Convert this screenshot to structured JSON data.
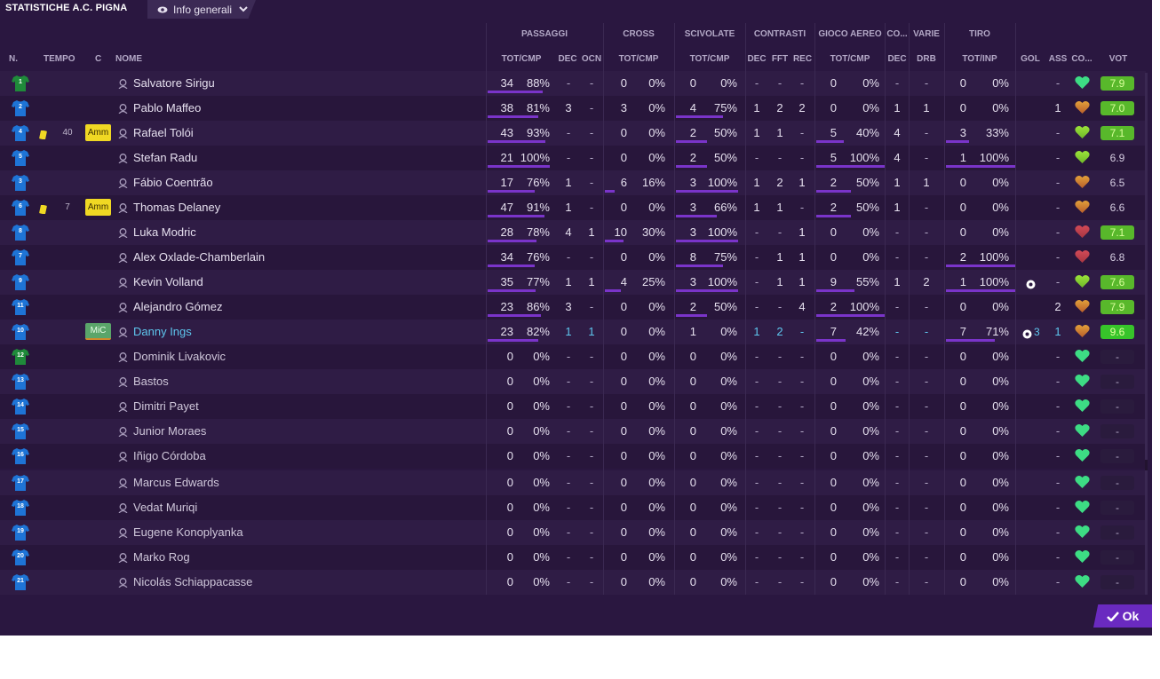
{
  "title": "STATISTICHE A.C. PIGNA",
  "view_select": {
    "label": "Info generali",
    "icon": "eye-icon"
  },
  "groups": {
    "passaggi": "PASSAGGI",
    "cross": "CROSS",
    "scivolate": "SCIVOLATE",
    "contrasti": "CONTRASTI",
    "aereo": "GIOCO AEREO",
    "co": "CO...",
    "varie": "VARIE",
    "tiro": "TIRO"
  },
  "columns": {
    "n": "N.",
    "tempo": "TEMPO",
    "c": "C",
    "nome": "NOME",
    "pass_tc": "TOT/CMP",
    "pass_dec": "DEC",
    "pass_ocn": "OCN",
    "cross_tc": "TOT/CMP",
    "sciv_tc": "TOT/CMP",
    "con_dec": "DEC",
    "con_fft": "FFT",
    "con_rec": "REC",
    "aer_tc": "TOT/CMP",
    "co_dec": "DEC",
    "var_drb": "DRB",
    "tiro_ti": "TOT/INP",
    "gol": "GOL",
    "ass": "ASS",
    "co": "CO...",
    "vot": "VOT"
  },
  "colors": {
    "accent": "#7a34c9",
    "card_yellow": "#f0d823",
    "highlight": "#5ec6ee",
    "rating_green": "#58b82b"
  },
  "players": [
    {
      "num": "1",
      "shirt": "green",
      "tempo": "",
      "card": false,
      "badge": "",
      "name": "Salvatore Sirigu",
      "style": "",
      "pass": [
        "34",
        "88%",
        "-",
        "-"
      ],
      "pass_pct": 0.88,
      "cross": [
        "0",
        "0%"
      ],
      "cross_pct": 0,
      "sciv": [
        "0",
        "0%"
      ],
      "sciv_pct": 0,
      "con": [
        "-",
        "-",
        "-"
      ],
      "aer": [
        "0",
        "0%"
      ],
      "aer_pct": 0,
      "co_dec": "-",
      "drb": "-",
      "tiro": [
        "0",
        "0%"
      ],
      "tiro_pct": 0,
      "gol": "",
      "ass": "-",
      "heart": "green",
      "vot": "7.9",
      "vot_style": "green"
    },
    {
      "num": "2",
      "shirt": "blue",
      "tempo": "",
      "card": false,
      "badge": "",
      "name": "Pablo Maffeo",
      "style": "",
      "pass": [
        "38",
        "81%",
        "3",
        "-"
      ],
      "pass_pct": 0.81,
      "cross": [
        "3",
        "0%"
      ],
      "cross_pct": 0,
      "sciv": [
        "4",
        "75%"
      ],
      "sciv_pct": 0.75,
      "con": [
        "1",
        "2",
        "2"
      ],
      "aer": [
        "0",
        "0%"
      ],
      "aer_pct": 0,
      "co_dec": "1",
      "drb": "1",
      "tiro": [
        "0",
        "0%"
      ],
      "tiro_pct": 0,
      "gol": "",
      "ass": "1",
      "heart": "orange",
      "vot": "7.0",
      "vot_style": "green"
    },
    {
      "num": "4",
      "shirt": "blue",
      "tempo": "40",
      "card": true,
      "badge": "Amm",
      "name": "Rafael Tolói",
      "style": "",
      "pass": [
        "43",
        "93%",
        "-",
        "-"
      ],
      "pass_pct": 0.93,
      "cross": [
        "0",
        "0%"
      ],
      "cross_pct": 0,
      "sciv": [
        "2",
        "50%"
      ],
      "sciv_pct": 0.5,
      "con": [
        "1",
        "1",
        "-"
      ],
      "aer": [
        "5",
        "40%"
      ],
      "aer_pct": 0.4,
      "co_dec": "4",
      "drb": "-",
      "tiro": [
        "3",
        "33%"
      ],
      "tiro_pct": 0.33,
      "gol": "",
      "ass": "-",
      "heart": "lime",
      "vot": "7.1",
      "vot_style": "green"
    },
    {
      "num": "5",
      "shirt": "blue",
      "tempo": "",
      "card": false,
      "badge": "",
      "name": "Stefan Radu",
      "style": "",
      "pass": [
        "21",
        "100%",
        "-",
        "-"
      ],
      "pass_pct": 1,
      "cross": [
        "0",
        "0%"
      ],
      "cross_pct": 0,
      "sciv": [
        "2",
        "50%"
      ],
      "sciv_pct": 0.5,
      "con": [
        "-",
        "-",
        "-"
      ],
      "aer": [
        "5",
        "100%"
      ],
      "aer_pct": 1,
      "co_dec": "4",
      "drb": "-",
      "tiro": [
        "1",
        "100%"
      ],
      "tiro_pct": 1,
      "gol": "",
      "ass": "-",
      "heart": "lime",
      "vot": "6.9",
      "vot_style": "plain"
    },
    {
      "num": "3",
      "shirt": "blue",
      "tempo": "",
      "card": false,
      "badge": "",
      "name": "Fábio Coentrão",
      "style": "",
      "pass": [
        "17",
        "76%",
        "1",
        "-"
      ],
      "pass_pct": 0.76,
      "cross": [
        "6",
        "16%"
      ],
      "cross_pct": 0.16,
      "sciv": [
        "3",
        "100%"
      ],
      "sciv_pct": 1,
      "con": [
        "1",
        "2",
        "1"
      ],
      "aer": [
        "2",
        "50%"
      ],
      "aer_pct": 0.5,
      "co_dec": "1",
      "drb": "1",
      "tiro": [
        "0",
        "0%"
      ],
      "tiro_pct": 0,
      "gol": "",
      "ass": "-",
      "heart": "orange",
      "vot": "6.5",
      "vot_style": "plain"
    },
    {
      "num": "6",
      "shirt": "blue",
      "tempo": "7",
      "card": true,
      "badge": "Amm",
      "name": "Thomas Delaney",
      "style": "",
      "pass": [
        "47",
        "91%",
        "1",
        "-"
      ],
      "pass_pct": 0.91,
      "cross": [
        "0",
        "0%"
      ],
      "cross_pct": 0,
      "sciv": [
        "3",
        "66%"
      ],
      "sciv_pct": 0.66,
      "con": [
        "1",
        "1",
        "-"
      ],
      "aer": [
        "2",
        "50%"
      ],
      "aer_pct": 0.5,
      "co_dec": "1",
      "drb": "-",
      "tiro": [
        "0",
        "0%"
      ],
      "tiro_pct": 0,
      "gol": "",
      "ass": "-",
      "heart": "orange",
      "vot": "6.6",
      "vot_style": "plain"
    },
    {
      "num": "8",
      "shirt": "blue",
      "tempo": "",
      "card": false,
      "badge": "",
      "name": "Luka Modric",
      "style": "",
      "pass": [
        "28",
        "78%",
        "4",
        "1"
      ],
      "pass_pct": 0.78,
      "cross": [
        "10",
        "30%"
      ],
      "cross_pct": 0.3,
      "sciv": [
        "3",
        "100%"
      ],
      "sciv_pct": 1,
      "con": [
        "-",
        "-",
        "1"
      ],
      "aer": [
        "0",
        "0%"
      ],
      "aer_pct": 0,
      "co_dec": "-",
      "drb": "-",
      "tiro": [
        "0",
        "0%"
      ],
      "tiro_pct": 0,
      "gol": "",
      "ass": "-",
      "heart": "red",
      "vot": "7.1",
      "vot_style": "green"
    },
    {
      "num": "7",
      "shirt": "blue",
      "tempo": "",
      "card": false,
      "badge": "",
      "name": "Alex Oxlade-Chamberlain",
      "style": "",
      "pass": [
        "34",
        "76%",
        "-",
        "-"
      ],
      "pass_pct": 0.76,
      "cross": [
        "0",
        "0%"
      ],
      "cross_pct": 0,
      "sciv": [
        "8",
        "75%"
      ],
      "sciv_pct": 0.75,
      "con": [
        "-",
        "1",
        "1"
      ],
      "aer": [
        "0",
        "0%"
      ],
      "aer_pct": 0,
      "co_dec": "-",
      "drb": "-",
      "tiro": [
        "2",
        "100%"
      ],
      "tiro_pct": 1,
      "gol": "",
      "ass": "-",
      "heart": "red",
      "vot": "6.8",
      "vot_style": "plain"
    },
    {
      "num": "9",
      "shirt": "blue",
      "tempo": "",
      "card": false,
      "badge": "",
      "name": "Kevin Volland",
      "style": "",
      "pass": [
        "35",
        "77%",
        "1",
        "1"
      ],
      "pass_pct": 0.77,
      "cross": [
        "4",
        "25%"
      ],
      "cross_pct": 0.25,
      "sciv": [
        "3",
        "100%"
      ],
      "sciv_pct": 1,
      "con": [
        "-",
        "1",
        "1"
      ],
      "aer": [
        "9",
        "55%"
      ],
      "aer_pct": 0.55,
      "co_dec": "1",
      "drb": "2",
      "tiro": [
        "1",
        "100%"
      ],
      "tiro_pct": 1,
      "gol": "ball",
      "ass": "-",
      "heart": "lime",
      "vot": "7.6",
      "vot_style": "green"
    },
    {
      "num": "11",
      "shirt": "blue",
      "tempo": "",
      "card": false,
      "badge": "",
      "name": "Alejandro Gómez",
      "style": "",
      "pass": [
        "23",
        "86%",
        "3",
        "-"
      ],
      "pass_pct": 0.86,
      "cross": [
        "0",
        "0%"
      ],
      "cross_pct": 0,
      "sciv": [
        "2",
        "50%"
      ],
      "sciv_pct": 0.5,
      "con": [
        "-",
        "-",
        "4"
      ],
      "aer": [
        "2",
        "100%"
      ],
      "aer_pct": 1,
      "co_dec": "-",
      "drb": "-",
      "tiro": [
        "0",
        "0%"
      ],
      "tiro_pct": 0,
      "gol": "",
      "ass": "2",
      "heart": "orange",
      "vot": "7.9",
      "vot_style": "green"
    },
    {
      "num": "10",
      "shirt": "blue",
      "tempo": "",
      "card": false,
      "badge": "MiC",
      "name": "Danny Ings",
      "style": "hi",
      "pass": [
        "23",
        "82%",
        "1",
        "1"
      ],
      "pass_pct": 0.82,
      "cross": [
        "0",
        "0%"
      ],
      "cross_pct": 0,
      "sciv": [
        "1",
        "0%"
      ],
      "sciv_pct": 0,
      "con": [
        "1",
        "2",
        "-"
      ],
      "aer": [
        "7",
        "42%"
      ],
      "aer_pct": 0.42,
      "co_dec": "-",
      "drb": "-",
      "tiro": [
        "7",
        "71%"
      ],
      "tiro_pct": 0.71,
      "gol": "3",
      "ass": "1",
      "heart": "orange",
      "vot": "9.6",
      "vot_style": "bright"
    },
    {
      "num": "12",
      "shirt": "green",
      "tempo": "",
      "card": false,
      "badge": "",
      "name": "Dominik Livakovic",
      "style": "sub",
      "pass": [
        "0",
        "0%",
        "-",
        "-"
      ],
      "pass_pct": 0,
      "cross": [
        "0",
        "0%"
      ],
      "cross_pct": 0,
      "sciv": [
        "0",
        "0%"
      ],
      "sciv_pct": 0,
      "con": [
        "-",
        "-",
        "-"
      ],
      "aer": [
        "0",
        "0%"
      ],
      "aer_pct": 0,
      "co_dec": "-",
      "drb": "-",
      "tiro": [
        "0",
        "0%"
      ],
      "tiro_pct": 0,
      "gol": "",
      "ass": "-",
      "heart": "green",
      "vot": "-",
      "vot_style": "none"
    },
    {
      "num": "13",
      "shirt": "blue",
      "tempo": "",
      "card": false,
      "badge": "",
      "name": "Bastos",
      "style": "sub",
      "pass": [
        "0",
        "0%",
        "-",
        "-"
      ],
      "pass_pct": 0,
      "cross": [
        "0",
        "0%"
      ],
      "cross_pct": 0,
      "sciv": [
        "0",
        "0%"
      ],
      "sciv_pct": 0,
      "con": [
        "-",
        "-",
        "-"
      ],
      "aer": [
        "0",
        "0%"
      ],
      "aer_pct": 0,
      "co_dec": "-",
      "drb": "-",
      "tiro": [
        "0",
        "0%"
      ],
      "tiro_pct": 0,
      "gol": "",
      "ass": "-",
      "heart": "green",
      "vot": "-",
      "vot_style": "none"
    },
    {
      "num": "14",
      "shirt": "blue",
      "tempo": "",
      "card": false,
      "badge": "",
      "name": "Dimitri Payet",
      "style": "sub",
      "pass": [
        "0",
        "0%",
        "-",
        "-"
      ],
      "pass_pct": 0,
      "cross": [
        "0",
        "0%"
      ],
      "cross_pct": 0,
      "sciv": [
        "0",
        "0%"
      ],
      "sciv_pct": 0,
      "con": [
        "-",
        "-",
        "-"
      ],
      "aer": [
        "0",
        "0%"
      ],
      "aer_pct": 0,
      "co_dec": "-",
      "drb": "-",
      "tiro": [
        "0",
        "0%"
      ],
      "tiro_pct": 0,
      "gol": "",
      "ass": "-",
      "heart": "green",
      "vot": "-",
      "vot_style": "none"
    },
    {
      "num": "15",
      "shirt": "blue",
      "tempo": "",
      "card": false,
      "badge": "",
      "name": "Junior Moraes",
      "style": "sub",
      "pass": [
        "0",
        "0%",
        "-",
        "-"
      ],
      "pass_pct": 0,
      "cross": [
        "0",
        "0%"
      ],
      "cross_pct": 0,
      "sciv": [
        "0",
        "0%"
      ],
      "sciv_pct": 0,
      "con": [
        "-",
        "-",
        "-"
      ],
      "aer": [
        "0",
        "0%"
      ],
      "aer_pct": 0,
      "co_dec": "-",
      "drb": "-",
      "tiro": [
        "0",
        "0%"
      ],
      "tiro_pct": 0,
      "gol": "",
      "ass": "-",
      "heart": "green",
      "vot": "-",
      "vot_style": "none"
    },
    {
      "num": "16",
      "shirt": "blue",
      "tempo": "",
      "card": false,
      "badge": "",
      "name": "Iñigo Córdoba",
      "style": "sub",
      "pass": [
        "0",
        "0%",
        "-",
        "-"
      ],
      "pass_pct": 0,
      "cross": [
        "0",
        "0%"
      ],
      "cross_pct": 0,
      "sciv": [
        "0",
        "0%"
      ],
      "sciv_pct": 0,
      "con": [
        "-",
        "-",
        "-"
      ],
      "aer": [
        "0",
        "0%"
      ],
      "aer_pct": 0,
      "co_dec": "-",
      "drb": "-",
      "tiro": [
        "0",
        "0%"
      ],
      "tiro_pct": 0,
      "gol": "",
      "ass": "-",
      "heart": "green",
      "vot": "-",
      "vot_style": "none"
    },
    {
      "num": "17",
      "shirt": "blue",
      "tempo": "",
      "card": false,
      "badge": "",
      "name": "Marcus Edwards",
      "style": "sub",
      "gap": true,
      "pass": [
        "0",
        "0%",
        "-",
        "-"
      ],
      "pass_pct": 0,
      "cross": [
        "0",
        "0%"
      ],
      "cross_pct": 0,
      "sciv": [
        "0",
        "0%"
      ],
      "sciv_pct": 0,
      "con": [
        "-",
        "-",
        "-"
      ],
      "aer": [
        "0",
        "0%"
      ],
      "aer_pct": 0,
      "co_dec": "-",
      "drb": "-",
      "tiro": [
        "0",
        "0%"
      ],
      "tiro_pct": 0,
      "gol": "",
      "ass": "-",
      "heart": "green",
      "vot": "-",
      "vot_style": "none"
    },
    {
      "num": "18",
      "shirt": "blue",
      "tempo": "",
      "card": false,
      "badge": "",
      "name": "Vedat Muriqi",
      "style": "sub",
      "pass": [
        "0",
        "0%",
        "-",
        "-"
      ],
      "pass_pct": 0,
      "cross": [
        "0",
        "0%"
      ],
      "cross_pct": 0,
      "sciv": [
        "0",
        "0%"
      ],
      "sciv_pct": 0,
      "con": [
        "-",
        "-",
        "-"
      ],
      "aer": [
        "0",
        "0%"
      ],
      "aer_pct": 0,
      "co_dec": "-",
      "drb": "-",
      "tiro": [
        "0",
        "0%"
      ],
      "tiro_pct": 0,
      "gol": "",
      "ass": "-",
      "heart": "green",
      "vot": "-",
      "vot_style": "none"
    },
    {
      "num": "19",
      "shirt": "blue",
      "tempo": "",
      "card": false,
      "badge": "",
      "name": "Eugene Konoplyanka",
      "style": "sub",
      "pass": [
        "0",
        "0%",
        "-",
        "-"
      ],
      "pass_pct": 0,
      "cross": [
        "0",
        "0%"
      ],
      "cross_pct": 0,
      "sciv": [
        "0",
        "0%"
      ],
      "sciv_pct": 0,
      "con": [
        "-",
        "-",
        "-"
      ],
      "aer": [
        "0",
        "0%"
      ],
      "aer_pct": 0,
      "co_dec": "-",
      "drb": "-",
      "tiro": [
        "0",
        "0%"
      ],
      "tiro_pct": 0,
      "gol": "",
      "ass": "-",
      "heart": "green",
      "vot": "-",
      "vot_style": "none"
    },
    {
      "num": "20",
      "shirt": "blue",
      "tempo": "",
      "card": false,
      "badge": "",
      "name": "Marko Rog",
      "style": "sub",
      "pass": [
        "0",
        "0%",
        "-",
        "-"
      ],
      "pass_pct": 0,
      "cross": [
        "0",
        "0%"
      ],
      "cross_pct": 0,
      "sciv": [
        "0",
        "0%"
      ],
      "sciv_pct": 0,
      "con": [
        "-",
        "-",
        "-"
      ],
      "aer": [
        "0",
        "0%"
      ],
      "aer_pct": 0,
      "co_dec": "-",
      "drb": "-",
      "tiro": [
        "0",
        "0%"
      ],
      "tiro_pct": 0,
      "gol": "",
      "ass": "-",
      "heart": "green",
      "vot": "-",
      "vot_style": "none"
    },
    {
      "num": "21",
      "shirt": "blue",
      "tempo": "",
      "card": false,
      "badge": "",
      "name": "Nicolás Schiappacasse",
      "style": "sub",
      "pass": [
        "0",
        "0%",
        "-",
        "-"
      ],
      "pass_pct": 0,
      "cross": [
        "0",
        "0%"
      ],
      "cross_pct": 0,
      "sciv": [
        "0",
        "0%"
      ],
      "sciv_pct": 0,
      "con": [
        "-",
        "-",
        "-"
      ],
      "aer": [
        "0",
        "0%"
      ],
      "aer_pct": 0,
      "co_dec": "-",
      "drb": "-",
      "tiro": [
        "0",
        "0%"
      ],
      "tiro_pct": 0,
      "gol": "",
      "ass": "-",
      "heart": "green",
      "vot": "-",
      "vot_style": "none"
    }
  ],
  "ok_button": {
    "label": "Ok"
  }
}
